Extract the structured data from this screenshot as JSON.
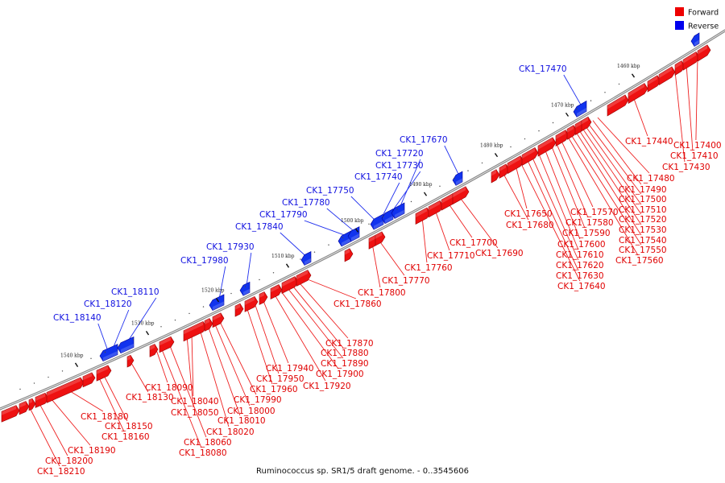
{
  "caption": "Ruminococcus sp. SR1/5 draft genome. - 0..3545606",
  "legend": {
    "forward_label": "Forward",
    "reverse_label": "Reverse",
    "forward_color": "#ee0000",
    "reverse_color": "#0000ee"
  },
  "ticks": [
    {
      "kbp": 1460,
      "label": "1460 kbp"
    },
    {
      "kbp": 1470,
      "label": "1470 kbp"
    },
    {
      "kbp": 1480,
      "label": "1480 kbp"
    },
    {
      "kbp": 1490,
      "label": "1490 kbp"
    },
    {
      "kbp": 1500,
      "label": "1500 kbp"
    },
    {
      "kbp": 1510,
      "label": "1510 kbp"
    },
    {
      "kbp": 1520,
      "label": "1520 kbp"
    },
    {
      "kbp": 1530,
      "label": "1530 kbp"
    },
    {
      "kbp": 1540,
      "label": "1540 kbp"
    }
  ],
  "forward_labels": [
    "CK1_17400",
    "CK1_17410",
    "CK1_17430",
    "CK1_17440",
    "CK1_17480",
    "CK1_17490",
    "CK1_17500",
    "CK1_17510",
    "CK1_17520",
    "CK1_17530",
    "CK1_17540",
    "CK1_17550",
    "CK1_17560",
    "CK1_17570",
    "CK1_17580",
    "CK1_17590",
    "CK1_17600",
    "CK1_17610",
    "CK1_17620",
    "CK1_17630",
    "CK1_17640",
    "CK1_17650",
    "CK1_17680",
    "CK1_17690",
    "CK1_17700",
    "CK1_17710",
    "CK1_17760",
    "CK1_17770",
    "CK1_17800",
    "CK1_17860",
    "CK1_17870",
    "CK1_17880",
    "CK1_17890",
    "CK1_17900",
    "CK1_17920",
    "CK1_17940",
    "CK1_17950",
    "CK1_17960",
    "CK1_17990",
    "CK1_18000",
    "CK1_18010",
    "CK1_18020",
    "CK1_18040",
    "CK1_18050",
    "CK1_18060",
    "CK1_18080",
    "CK1_18090",
    "CK1_18130",
    "CK1_18150",
    "CK1_18160",
    "CK1_18180",
    "CK1_18190",
    "CK1_18200",
    "CK1_18210"
  ],
  "reverse_labels": [
    "CK1_17470",
    "CK1_17670",
    "CK1_17720",
    "CK1_17730",
    "CK1_17740",
    "CK1_17750",
    "CK1_17780",
    "CK1_17790",
    "CK1_17840",
    "CK1_17930",
    "CK1_17980",
    "CK1_18110",
    "CK1_18120",
    "CK1_18140"
  ]
}
